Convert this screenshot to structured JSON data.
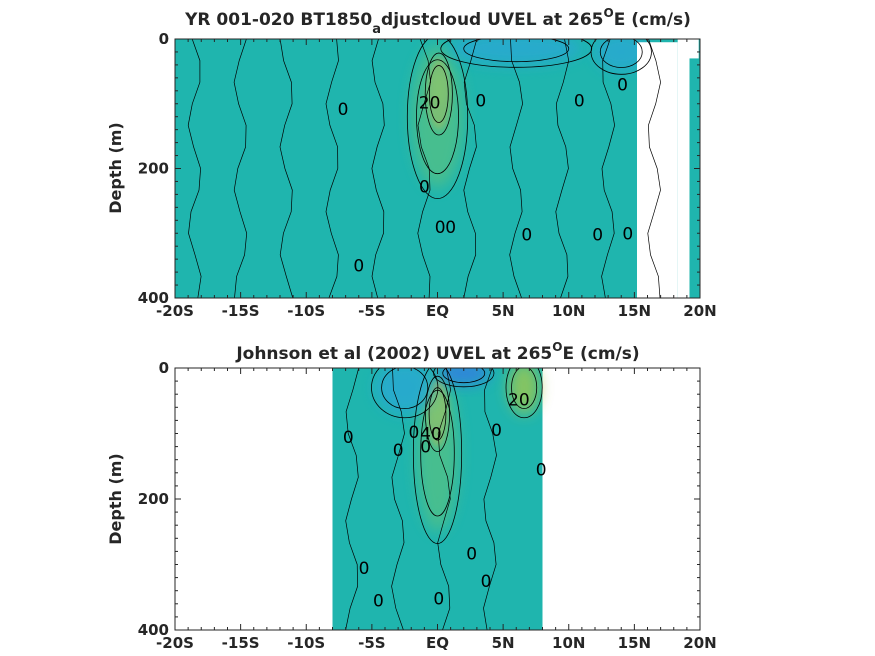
{
  "colors": {
    "background": "#1fb5ae",
    "weak_warm": "#55c185",
    "medium_warm": "#a6c94a",
    "strong_warm": "#f5b540",
    "core": "#fcce3a",
    "weak_cold": "#2aa7d6",
    "strong_cold": "#3477e8",
    "contour": "#000000"
  },
  "chart_data": [
    {
      "type": "contourf",
      "title_main": "YR 001-020 BT1850",
      "title_sub": "a",
      "title_tail": "djustcloud UVEL at 265",
      "title_sup": "O",
      "title_end": "E (cm/s)",
      "ylabel": "Depth (m)",
      "xlim": [
        -20,
        20
      ],
      "ylim": [
        0,
        400
      ],
      "y_reversed": true,
      "xticks": [
        -20,
        -15,
        -10,
        -5,
        0,
        5,
        10,
        15,
        20
      ],
      "xtick_labels": [
        "-20S",
        "-15S",
        "-10S",
        "-5S",
        "EQ",
        "5N",
        "10N",
        "15N",
        "20N"
      ],
      "yticks": [
        0,
        200,
        400
      ],
      "ytick_labels": [
        "0",
        "200",
        "400"
      ],
      "data_extent_x": [
        -20,
        20
      ],
      "missing_regions": [
        {
          "x": [
            15.2,
            18.3
          ],
          "y": [
            5,
            400
          ]
        },
        {
          "x": [
            18.3,
            19.2
          ],
          "y": [
            0,
            400
          ]
        },
        {
          "x": [
            19.2,
            19.9
          ],
          "y": [
            0,
            30
          ]
        }
      ],
      "features": [
        {
          "kind": "warm",
          "x": 0.1,
          "y": 85,
          "rx": 0.9,
          "ry": 55,
          "peak_cm_s": 40
        },
        {
          "kind": "warm",
          "x": 0.0,
          "y": 120,
          "rx": 2.0,
          "ry": 110,
          "peak_cm_s": 10
        },
        {
          "kind": "cold",
          "x": 6.0,
          "y": 15,
          "rx": 5.0,
          "ry": 25,
          "peak_cm_s": -10
        },
        {
          "kind": "cold",
          "x": 14.0,
          "y": 20,
          "rx": 2.0,
          "ry": 30,
          "peak_cm_s": -10
        }
      ],
      "contour_labels": [
        {
          "x": -7.2,
          "y": 108,
          "text": "0"
        },
        {
          "x": -0.6,
          "y": 98,
          "text": "20"
        },
        {
          "x": -1.0,
          "y": 228,
          "text": "0"
        },
        {
          "x": 0.2,
          "y": 290,
          "text": "0"
        },
        {
          "x": 1.0,
          "y": 290,
          "text": "0"
        },
        {
          "x": 3.3,
          "y": 95,
          "text": "0"
        },
        {
          "x": 6.8,
          "y": 302,
          "text": "0"
        },
        {
          "x": 10.8,
          "y": 95,
          "text": "0"
        },
        {
          "x": 12.2,
          "y": 302,
          "text": "0"
        },
        {
          "x": 14.1,
          "y": 70,
          "text": "0"
        },
        {
          "x": 14.5,
          "y": 300,
          "text": "0"
        },
        {
          "x": -6.0,
          "y": 350,
          "text": "0"
        }
      ]
    },
    {
      "type": "contourf",
      "title_main": "Johnson et al (2002) UVEL at 265",
      "title_sup": "O",
      "title_end": "E (cm/s)",
      "ylabel": "Depth (m)",
      "xlim": [
        -20,
        20
      ],
      "ylim": [
        0,
        400
      ],
      "y_reversed": true,
      "xticks": [
        -20,
        -15,
        -10,
        -5,
        0,
        5,
        10,
        15,
        20
      ],
      "xtick_labels": [
        "-20S",
        "-15S",
        "-10S",
        "-5S",
        "EQ",
        "5N",
        "10N",
        "15N",
        "20N"
      ],
      "yticks": [
        0,
        200,
        400
      ],
      "ytick_labels": [
        "0",
        "200",
        "400"
      ],
      "data_extent_x": [
        -8,
        8
      ],
      "features": [
        {
          "kind": "warm",
          "x": 0.0,
          "y": 70,
          "rx": 0.8,
          "ry": 50,
          "peak_cm_s": 40
        },
        {
          "kind": "warm",
          "x": 0.0,
          "y": 130,
          "rx": 1.6,
          "ry": 120,
          "peak_cm_s": 10
        },
        {
          "kind": "warm",
          "x": 6.6,
          "y": 30,
          "rx": 1.2,
          "ry": 40,
          "peak_cm_s": 20
        },
        {
          "kind": "cold",
          "x": 2.0,
          "y": 8,
          "rx": 2.0,
          "ry": 18,
          "peak_cm_s": -20
        },
        {
          "kind": "cold",
          "x": -2.5,
          "y": 30,
          "rx": 2.2,
          "ry": 40,
          "peak_cm_s": -10
        }
      ],
      "contour_labels": [
        {
          "x": -6.8,
          "y": 105,
          "text": "0"
        },
        {
          "x": -3.0,
          "y": 125,
          "text": "0"
        },
        {
          "x": -1.8,
          "y": 98,
          "text": "0"
        },
        {
          "x": -0.5,
          "y": 100,
          "text": "40"
        },
        {
          "x": -0.9,
          "y": 120,
          "text": "0"
        },
        {
          "x": 4.5,
          "y": 95,
          "text": "0"
        },
        {
          "x": 6.2,
          "y": 48,
          "text": "20"
        },
        {
          "x": 7.9,
          "y": 155,
          "text": "0"
        },
        {
          "x": 2.6,
          "y": 283,
          "text": "0"
        },
        {
          "x": 3.7,
          "y": 325,
          "text": "0"
        },
        {
          "x": -5.6,
          "y": 305,
          "text": "0"
        },
        {
          "x": -4.5,
          "y": 355,
          "text": "0"
        },
        {
          "x": 0.1,
          "y": 352,
          "text": "0"
        }
      ]
    }
  ]
}
